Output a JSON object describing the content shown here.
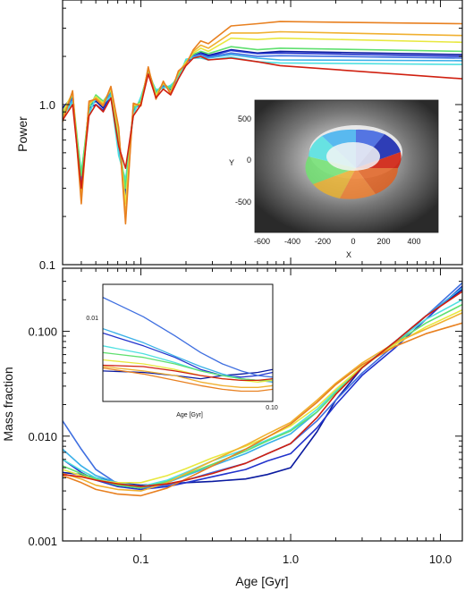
{
  "chart_data": [
    {
      "type": "line",
      "panel": "top",
      "ylabel": "Power",
      "x_axis": "log",
      "y_axis": "log",
      "xlim": [
        0.03,
        14
      ],
      "ylim": [
        0.1,
        4.5
      ],
      "yticks": [
        "0.1",
        "1.0"
      ],
      "yticks_values": [
        0.1,
        1.0
      ],
      "x": [
        0.03,
        0.035,
        0.04,
        0.045,
        0.05,
        0.056,
        0.063,
        0.071,
        0.079,
        0.089,
        0.1,
        0.112,
        0.126,
        0.141,
        0.158,
        0.178,
        0.2,
        0.224,
        0.251,
        0.282,
        0.4,
        0.6,
        0.85,
        14
      ],
      "series": [
        {
          "color": "#0a1aa0",
          "values": [
            0.95,
            1.12,
            0.32,
            0.98,
            1.05,
            0.95,
            1.18,
            0.62,
            0.28,
            0.95,
            1.05,
            1.65,
            1.18,
            1.35,
            1.25,
            1.55,
            1.85,
            2.05,
            2.12,
            2.03,
            2.2,
            2.1,
            2.15,
            2.05
          ]
        },
        {
          "color": "#2233cc",
          "values": [
            0.9,
            1.1,
            0.3,
            0.95,
            1.0,
            0.92,
            1.15,
            0.58,
            0.26,
            0.92,
            1.02,
            1.62,
            1.15,
            1.32,
            1.22,
            1.52,
            1.82,
            2.0,
            2.08,
            2.0,
            2.18,
            2.08,
            2.1,
            2.0
          ]
        },
        {
          "color": "#3f6fe0",
          "values": [
            0.92,
            1.08,
            0.34,
            0.9,
            1.08,
            0.98,
            1.2,
            0.55,
            0.3,
            0.9,
            1.08,
            1.6,
            1.2,
            1.3,
            1.28,
            1.5,
            1.88,
            2.02,
            2.05,
            1.98,
            2.1,
            2.0,
            2.02,
            1.95
          ]
        },
        {
          "color": "#3ab0e8",
          "values": [
            0.88,
            1.05,
            0.36,
            0.88,
            1.1,
            1.0,
            1.16,
            0.5,
            0.32,
            0.88,
            1.1,
            1.58,
            1.22,
            1.28,
            1.3,
            1.48,
            1.9,
            1.98,
            2.0,
            1.95,
            2.05,
            1.95,
            1.9,
            1.88
          ]
        },
        {
          "color": "#4fe0e0",
          "values": [
            0.85,
            1.02,
            0.38,
            0.86,
            1.12,
            1.02,
            1.12,
            0.48,
            0.34,
            0.86,
            1.12,
            1.56,
            1.24,
            1.26,
            1.32,
            1.46,
            1.92,
            1.95,
            1.95,
            1.9,
            1.98,
            1.85,
            1.82,
            1.78
          ]
        },
        {
          "color": "#60e070",
          "values": [
            0.86,
            1.15,
            0.36,
            0.95,
            1.15,
            1.05,
            1.22,
            0.6,
            0.3,
            0.94,
            1.06,
            1.64,
            1.18,
            1.34,
            1.26,
            1.54,
            1.86,
            2.06,
            2.15,
            2.08,
            2.3,
            2.2,
            2.25,
            2.15
          ]
        },
        {
          "color": "#e8e840",
          "values": [
            0.9,
            1.18,
            0.28,
            1.0,
            1.12,
            1.02,
            1.25,
            0.66,
            0.24,
            0.98,
            1.02,
            1.68,
            1.14,
            1.36,
            1.2,
            1.58,
            1.84,
            2.1,
            2.25,
            2.15,
            2.6,
            2.55,
            2.6,
            2.45
          ]
        },
        {
          "color": "#f0b030",
          "values": [
            0.82,
            1.2,
            0.26,
            1.02,
            1.1,
            1.0,
            1.28,
            0.7,
            0.2,
            1.0,
            1.0,
            1.7,
            1.1,
            1.38,
            1.18,
            1.6,
            1.8,
            2.15,
            2.35,
            2.25,
            2.8,
            2.8,
            2.85,
            2.7
          ]
        },
        {
          "color": "#e88020",
          "values": [
            0.78,
            1.22,
            0.24,
            1.05,
            1.08,
            0.98,
            1.3,
            0.72,
            0.18,
            1.02,
            0.98,
            1.72,
            1.08,
            1.4,
            1.16,
            1.62,
            1.78,
            2.2,
            2.5,
            2.4,
            3.1,
            3.2,
            3.3,
            3.2
          ]
        },
        {
          "color": "#d02010",
          "values": [
            0.8,
            1.0,
            0.3,
            0.85,
            1.0,
            0.9,
            1.1,
            0.55,
            0.4,
            0.85,
            1.0,
            1.55,
            1.1,
            1.25,
            1.15,
            1.45,
            1.75,
            1.95,
            2.0,
            1.9,
            1.95,
            1.85,
            1.75,
            1.45
          ]
        }
      ]
    },
    {
      "type": "line",
      "panel": "bottom",
      "xlabel": "Age  [Gyr]",
      "ylabel": "Mass fraction",
      "x_axis": "log",
      "y_axis": "log",
      "xlim": [
        0.03,
        14
      ],
      "ylim": [
        0.001,
        0.4
      ],
      "xticks": [
        "0.1",
        "1.0",
        "10.0"
      ],
      "xticks_values": [
        0.1,
        1.0,
        10.0
      ],
      "yticks": [
        "0.001",
        "0.010",
        "0.100"
      ],
      "yticks_values": [
        0.001,
        0.01,
        0.1
      ],
      "x": [
        0.03,
        0.04,
        0.05,
        0.07,
        0.1,
        0.15,
        0.2,
        0.3,
        0.5,
        0.7,
        1.0,
        1.5,
        2.0,
        3.0,
        5.0,
        8.0,
        14.0
      ],
      "series": [
        {
          "color": "#0a1aa0",
          "values": [
            0.0045,
            0.0043,
            0.004,
            0.0036,
            0.0034,
            0.0035,
            0.0036,
            0.0037,
            0.0039,
            0.0043,
            0.005,
            0.011,
            0.022,
            0.045,
            0.08,
            0.14,
            0.25
          ]
        },
        {
          "color": "#2233cc",
          "values": [
            0.006,
            0.0045,
            0.0038,
            0.0033,
            0.0031,
            0.0033,
            0.0036,
            0.0041,
            0.0048,
            0.0058,
            0.0068,
            0.012,
            0.02,
            0.038,
            0.07,
            0.13,
            0.27
          ]
        },
        {
          "color": "#3f6fe0",
          "values": [
            0.014,
            0.0075,
            0.0048,
            0.0035,
            0.0032,
            0.0034,
            0.0038,
            0.0045,
            0.0055,
            0.0068,
            0.0085,
            0.014,
            0.022,
            0.04,
            0.075,
            0.14,
            0.29
          ]
        },
        {
          "color": "#3ab0e8",
          "values": [
            0.0075,
            0.0052,
            0.0042,
            0.0036,
            0.0033,
            0.0036,
            0.0042,
            0.0052,
            0.0068,
            0.0085,
            0.0105,
            0.017,
            0.026,
            0.045,
            0.08,
            0.14,
            0.26
          ]
        },
        {
          "color": "#4fe0e0",
          "values": [
            0.006,
            0.0047,
            0.004,
            0.0035,
            0.0033,
            0.0038,
            0.0045,
            0.0058,
            0.0075,
            0.0092,
            0.0115,
            0.018,
            0.027,
            0.046,
            0.08,
            0.13,
            0.2
          ]
        },
        {
          "color": "#60e070",
          "values": [
            0.0052,
            0.0044,
            0.0039,
            0.0034,
            0.0032,
            0.0037,
            0.0043,
            0.0054,
            0.0072,
            0.009,
            0.0112,
            0.017,
            0.026,
            0.045,
            0.078,
            0.12,
            0.18
          ]
        },
        {
          "color": "#e8e840",
          "values": [
            0.0048,
            0.0042,
            0.0038,
            0.0036,
            0.0036,
            0.0042,
            0.0049,
            0.0062,
            0.008,
            0.0098,
            0.0125,
            0.019,
            0.028,
            0.046,
            0.075,
            0.11,
            0.16
          ]
        },
        {
          "color": "#f0b030",
          "values": [
            0.0044,
            0.0039,
            0.0034,
            0.0031,
            0.003,
            0.0036,
            0.0044,
            0.0058,
            0.0082,
            0.0105,
            0.0135,
            0.022,
            0.032,
            0.05,
            0.078,
            0.105,
            0.15
          ]
        },
        {
          "color": "#e88020",
          "values": [
            0.0042,
            0.0036,
            0.0031,
            0.0028,
            0.0027,
            0.0032,
            0.0039,
            0.0052,
            0.0075,
            0.0098,
            0.013,
            0.021,
            0.031,
            0.048,
            0.072,
            0.095,
            0.12
          ]
        },
        {
          "color": "#d02010",
          "values": [
            0.0043,
            0.0041,
            0.0038,
            0.0035,
            0.0033,
            0.0035,
            0.0038,
            0.0044,
            0.0055,
            0.0068,
            0.0085,
            0.015,
            0.025,
            0.045,
            0.08,
            0.14,
            0.24
          ]
        }
      ]
    },
    {
      "type": "line",
      "panel": "bottom-inset",
      "xlabel": "Age  [Gyr]",
      "x_axis": "log",
      "y_axis": "log",
      "xlim": [
        0.03,
        0.1
      ],
      "ylim": [
        0.0035,
        0.016
      ],
      "xticks": [
        "0.10"
      ],
      "yticks": [
        "0.01"
      ],
      "x": [
        0.03,
        0.04,
        0.05,
        0.06,
        0.07,
        0.08,
        0.09,
        0.1
      ],
      "series": [
        {
          "color": "#0a1aa0",
          "values": [
            0.0052,
            0.0051,
            0.0049,
            0.0047,
            0.0049,
            0.005,
            0.0051,
            0.0053
          ]
        },
        {
          "color": "#2233cc",
          "values": [
            0.0085,
            0.0072,
            0.0062,
            0.0053,
            0.0049,
            0.0048,
            0.0049,
            0.0051
          ]
        },
        {
          "color": "#3f6fe0",
          "values": [
            0.0135,
            0.0105,
            0.0082,
            0.0066,
            0.0057,
            0.0052,
            0.0049,
            0.0048
          ]
        },
        {
          "color": "#3ab0e8",
          "values": [
            0.009,
            0.0075,
            0.0063,
            0.0055,
            0.005,
            0.0047,
            0.0046,
            0.0045
          ]
        },
        {
          "color": "#4fe0e0",
          "values": [
            0.0072,
            0.0065,
            0.0058,
            0.0052,
            0.0049,
            0.0047,
            0.0046,
            0.0046
          ]
        },
        {
          "color": "#60e070",
          "values": [
            0.0066,
            0.0062,
            0.0057,
            0.0052,
            0.0049,
            0.0047,
            0.0046,
            0.0046
          ]
        },
        {
          "color": "#e8e840",
          "values": [
            0.006,
            0.0057,
            0.0053,
            0.0049,
            0.0047,
            0.0046,
            0.0045,
            0.0046
          ]
        },
        {
          "color": "#f0b030",
          "values": [
            0.0055,
            0.0052,
            0.0049,
            0.0045,
            0.0043,
            0.0042,
            0.0042,
            0.0043
          ]
        },
        {
          "color": "#e88020",
          "values": [
            0.0054,
            0.005,
            0.0046,
            0.0043,
            0.0041,
            0.004,
            0.004,
            0.0041
          ]
        },
        {
          "color": "#d02010",
          "values": [
            0.0056,
            0.0055,
            0.0052,
            0.0049,
            0.0047,
            0.0046,
            0.0046,
            0.0047
          ]
        }
      ]
    }
  ],
  "inset_map": {
    "type": "image-with-overlay",
    "xlabel": "X",
    "ylabel": "Y",
    "xticks": [
      "-600",
      "-400",
      "-200",
      "0",
      "200",
      "400"
    ],
    "yticks": [
      "500",
      "0",
      "-500"
    ],
    "colors": [
      "#0a1aa0",
      "#2233cc",
      "#3f6fe0",
      "#3ab0e8",
      "#4fe0e0",
      "#60e070",
      "#e8e840",
      "#f0b030",
      "#e88020",
      "#d02010"
    ]
  }
}
